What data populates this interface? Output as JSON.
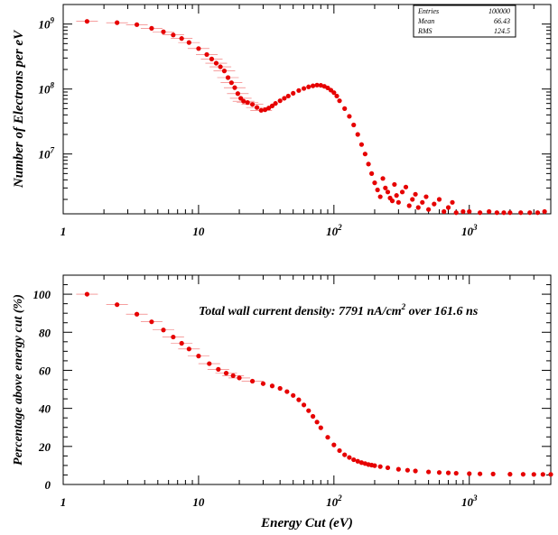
{
  "stats_box": {
    "rows": [
      {
        "label": "Entries",
        "value": "100000"
      },
      {
        "label": "Mean",
        "value": "66.43"
      },
      {
        "label": "RMS",
        "value": "124.5"
      }
    ]
  },
  "chart_data": [
    {
      "type": "scatter",
      "xlabel": "",
      "ylabel": "Number of Electrons per eV",
      "xscale": "log",
      "yscale": "log",
      "xlim": [
        1,
        4000
      ],
      "ylim": [
        1200000,
        2000000000
      ],
      "x_tick_labels": [
        {
          "base": "1",
          "exp": ""
        },
        {
          "base": "10",
          "exp": ""
        },
        {
          "base": "10",
          "exp": "2"
        },
        {
          "base": "10",
          "exp": "3"
        }
      ],
      "y_tick_labels": [
        {
          "base": "10",
          "exp": "7"
        },
        {
          "base": "10",
          "exp": "8"
        },
        {
          "base": "10",
          "exp": "9"
        }
      ],
      "color": "#e60000",
      "x": [
        1.5,
        2.5,
        3.5,
        4.5,
        5.5,
        6.5,
        7.5,
        8.5,
        10,
        11.5,
        12.5,
        13.5,
        14.5,
        15.5,
        16.5,
        17.5,
        18.5,
        19.5,
        20.5,
        21.5,
        23,
        25,
        27,
        29,
        31,
        33,
        35,
        37,
        40,
        43,
        46,
        50,
        55,
        60,
        65,
        70,
        75,
        80,
        85,
        90,
        95,
        100,
        105,
        110,
        120,
        130,
        140,
        150,
        160,
        170,
        180,
        190,
        200,
        210,
        220,
        230,
        240,
        250,
        260,
        270,
        280,
        290,
        300,
        320,
        340,
        360,
        380,
        400,
        420,
        450,
        480,
        500,
        550,
        600,
        650,
        700,
        750,
        800,
        900,
        1000,
        1200,
        1400,
        1600,
        1800,
        2000,
        2400,
        2800,
        3200,
        3600
      ],
      "values": [
        1100000000,
        1050000000,
        980000000,
        860000000,
        760000000,
        680000000,
        600000000,
        520000000,
        420000000,
        340000000,
        290000000,
        250000000,
        220000000,
        190000000,
        150000000,
        125000000,
        105000000,
        85000000,
        72000000,
        65000000,
        62000000,
        58000000,
        52000000,
        47000000,
        48000000,
        51000000,
        55000000,
        60000000,
        66000000,
        72000000,
        78000000,
        86000000,
        95000000,
        102000000,
        108000000,
        112000000,
        115000000,
        114000000,
        110000000,
        104000000,
        96000000,
        88000000,
        78000000,
        66000000,
        50000000,
        38000000,
        28000000,
        20000000,
        14000000,
        10000000,
        7000000,
        5000000,
        3600000,
        2800000,
        2200000,
        4200000,
        3000000,
        2600000,
        2100000,
        1900000,
        3400000,
        2300000,
        1800000,
        2600000,
        3100000,
        1600000,
        2000000,
        2400000,
        1500000,
        1800000,
        2200000,
        1400000,
        1700000,
        2000000,
        1300000,
        1500000,
        1800000,
        1250000,
        1300000,
        1300000,
        1250000,
        1300000,
        1250000,
        1250000,
        1250000,
        1250000,
        1250000,
        1250000,
        1300000
      ]
    },
    {
      "type": "scatter",
      "xlabel": "Energy Cut (eV)",
      "ylabel": "Percentage above energy cut (%)",
      "xscale": "log",
      "yscale": "linear",
      "xlim": [
        1,
        4000
      ],
      "ylim": [
        0,
        110
      ],
      "x_tick_labels": [
        {
          "base": "1",
          "exp": ""
        },
        {
          "base": "10",
          "exp": ""
        },
        {
          "base": "10",
          "exp": "2"
        },
        {
          "base": "10",
          "exp": "3"
        }
      ],
      "y_ticks": [
        0,
        20,
        40,
        60,
        80,
        100
      ],
      "y_tick_labels": [
        "0",
        "20",
        "40",
        "60",
        "80",
        "100"
      ],
      "annotation": {
        "prefix": "Total wall current density: 7791 nA/cm",
        "exp": "2",
        "suffix": " over 161.6 ns"
      },
      "color": "#e60000",
      "x": [
        1.5,
        2.5,
        3.5,
        4.5,
        5.5,
        6.5,
        7.5,
        8.5,
        10,
        12,
        14,
        16,
        18,
        20,
        25,
        30,
        35,
        40,
        45,
        50,
        55,
        60,
        65,
        70,
        75,
        80,
        90,
        100,
        110,
        120,
        130,
        140,
        150,
        160,
        170,
        180,
        190,
        200,
        220,
        250,
        300,
        350,
        400,
        500,
        600,
        700,
        800,
        1000,
        1200,
        1500,
        2000,
        2500,
        3000,
        3500,
        4000
      ],
      "values": [
        100,
        94.5,
        89.5,
        85.5,
        81.2,
        77.5,
        74.2,
        71.2,
        67.5,
        63.5,
        60.5,
        58.5,
        57.2,
        56.0,
        54.3,
        53.0,
        51.8,
        50.5,
        48.8,
        46.8,
        44.5,
        41.8,
        38.8,
        35.8,
        32.8,
        29.8,
        24.8,
        20.8,
        17.8,
        15.6,
        14.2,
        13.0,
        12.2,
        11.5,
        11.0,
        10.5,
        10.2,
        9.9,
        9.4,
        8.8,
        8.0,
        7.5,
        7.1,
        6.6,
        6.3,
        6.1,
        5.9,
        5.7,
        5.6,
        5.5,
        5.4,
        5.35,
        5.3,
        5.3,
        5.3
      ]
    }
  ]
}
